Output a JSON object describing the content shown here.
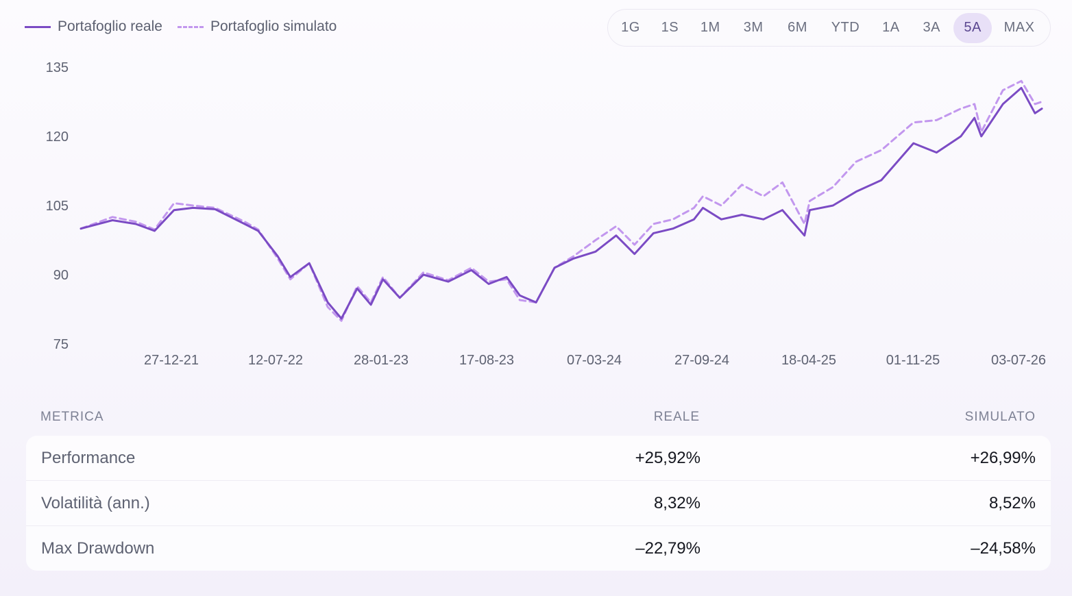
{
  "legend": {
    "real_label": "Portafoglio reale",
    "simulated_label": "Portafoglio simulato"
  },
  "range_selector": {
    "options": [
      "1G",
      "1S",
      "1M",
      "3M",
      "6M",
      "YTD",
      "1A",
      "3A",
      "5A",
      "MAX"
    ],
    "selected": "5A"
  },
  "colors": {
    "real": "#7b4bc4",
    "simulated": "#c297ee",
    "active_pill": "#e8e0f7"
  },
  "chart_data": {
    "type": "line",
    "x_tick_labels": [
      "27-12-21",
      "12-07-22",
      "28-01-23",
      "17-08-23",
      "07-03-24",
      "27-09-24",
      "18-04-25",
      "01-11-25",
      "03-07-26"
    ],
    "y_ticks": [
      75,
      90,
      105,
      120,
      135
    ],
    "ylim": [
      75,
      135
    ],
    "grid": false,
    "legend_position": "top-left",
    "x": [
      "2021-07-03",
      "2021-09-01",
      "2021-10-15",
      "2021-11-20",
      "2021-12-27",
      "2022-02-01",
      "2022-03-15",
      "2022-05-10",
      "2022-06-05",
      "2022-07-12",
      "2022-08-05",
      "2022-09-10",
      "2022-10-15",
      "2022-11-10",
      "2022-12-10",
      "2023-01-05",
      "2023-01-28",
      "2023-03-01",
      "2023-04-15",
      "2023-06-01",
      "2023-07-15",
      "2023-08-17",
      "2023-09-20",
      "2023-10-15",
      "2023-11-15",
      "2023-12-20",
      "2024-01-25",
      "2024-03-07",
      "2024-04-15",
      "2024-05-20",
      "2024-06-25",
      "2024-08-01",
      "2024-09-10",
      "2024-09-27",
      "2024-11-01",
      "2024-12-10",
      "2025-01-20",
      "2025-02-25",
      "2025-04-08",
      "2025-04-18",
      "2025-06-01",
      "2025-07-15",
      "2025-09-01",
      "2025-11-01",
      "2025-12-15",
      "2026-01-30",
      "2026-02-25",
      "2026-03-10",
      "2026-04-20",
      "2026-05-25",
      "2026-06-20",
      "2026-07-03"
    ],
    "series": [
      {
        "name": "Portafoglio reale",
        "style": "solid",
        "values": [
          100,
          101.8,
          101,
          99.5,
          104,
          104.5,
          104.2,
          101,
          99.5,
          94,
          89.5,
          92.5,
          84,
          80.5,
          87,
          83.5,
          89,
          85,
          90,
          88.5,
          91,
          88,
          89.5,
          85.5,
          84,
          91.5,
          93.5,
          95,
          98.5,
          94.5,
          99,
          100,
          102,
          104.5,
          102,
          103,
          102,
          104,
          98.5,
          104,
          105,
          108,
          110.5,
          118.5,
          116.5,
          120,
          124,
          120,
          127,
          130.5,
          125,
          126
        ]
      },
      {
        "name": "Portafoglio simulato",
        "style": "dashed",
        "values": [
          100,
          102.5,
          101.5,
          99.8,
          105.5,
          105,
          104.5,
          101.5,
          99.8,
          93.5,
          89,
          92.5,
          83,
          80,
          87.5,
          84,
          89.5,
          85,
          90.5,
          88.8,
          91.5,
          88.5,
          89,
          84.5,
          84,
          91.5,
          94,
          97.5,
          100.5,
          96.5,
          101,
          102,
          104.5,
          107,
          105,
          109.5,
          107,
          110,
          101,
          106,
          109,
          114.5,
          117,
          123,
          123.5,
          126,
          127,
          121,
          130,
          132,
          127,
          127.5
        ]
      }
    ]
  },
  "metrics": {
    "headers": {
      "metric": "METRICA",
      "real": "REALE",
      "simulated": "SIMULATO"
    },
    "rows": [
      {
        "name": "Performance",
        "real": "+25,92%",
        "simulated": "+26,99%"
      },
      {
        "name": "Volatilità (ann.)",
        "real": "8,32%",
        "simulated": "8,52%"
      },
      {
        "name": "Max Drawdown",
        "real": "–22,79%",
        "simulated": "–24,58%"
      }
    ]
  }
}
